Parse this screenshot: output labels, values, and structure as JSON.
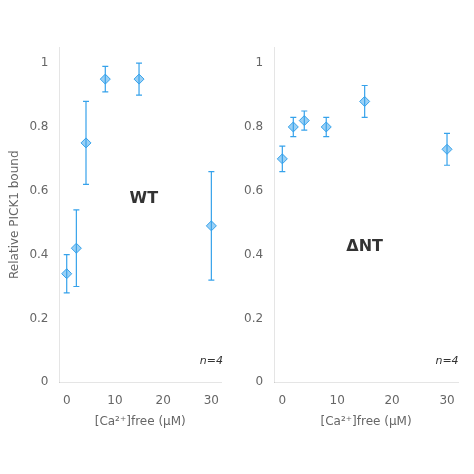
{
  "chart_data": [
    {
      "type": "scatter",
      "x_label": "[Ca²⁺]free (μM)",
      "y_label": "Relative PICK1 bound",
      "x": [
        0,
        2,
        4,
        8,
        15,
        30
      ],
      "series": [
        {
          "values": [
            0.34,
            0.42,
            0.75,
            0.95,
            0.95,
            0.49
          ],
          "yerr": [
            0.06,
            0.12,
            0.13,
            0.04,
            0.05,
            0.17
          ],
          "marker": "diamond"
        }
      ],
      "xlim": [
        -1.5,
        32
      ],
      "xticks": [
        0,
        10,
        20,
        30
      ],
      "ylim": [
        0,
        1.05
      ],
      "yticks": [
        0,
        0.2,
        0.4,
        0.6,
        0.8,
        1
      ],
      "grid": false,
      "annotations": [
        {
          "text": "WT",
          "x": 16,
          "y": 0.55
        },
        {
          "text": "n=4",
          "x": 30,
          "y": 0.05
        }
      ]
    },
    {
      "type": "scatter",
      "x_label": "[Ca²⁺]free (μM)",
      "x": [
        0,
        2,
        4,
        8,
        15,
        30
      ],
      "series": [
        {
          "values": [
            0.7,
            0.8,
            0.82,
            0.8,
            0.88,
            0.73
          ],
          "yerr": [
            0.04,
            0.03,
            0.03,
            0.03,
            0.05,
            0.05
          ],
          "marker": "diamond"
        }
      ],
      "xlim": [
        -1.5,
        32
      ],
      "xticks": [
        0,
        10,
        20,
        30
      ],
      "ylim": [
        0,
        1.05
      ],
      "yticks": [
        0,
        0.2,
        0.4,
        0.6,
        0.8,
        1
      ],
      "grid": false,
      "annotations": [
        {
          "text": "ΔNT",
          "x": 15,
          "y": 0.4
        },
        {
          "text": "n=4",
          "x": 30,
          "y": 0.05
        }
      ]
    }
  ]
}
